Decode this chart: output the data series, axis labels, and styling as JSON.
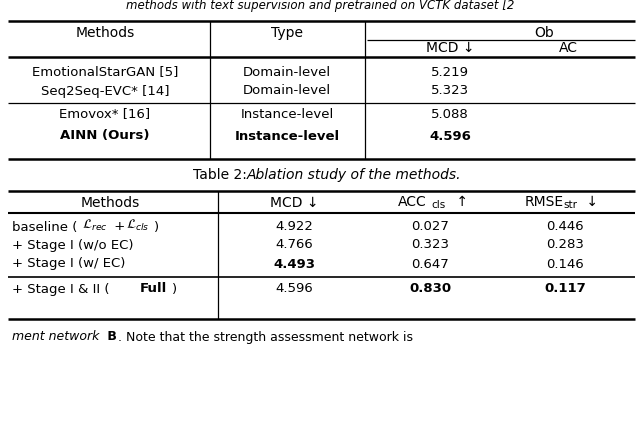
{
  "bg_color": "#ffffff",
  "title": "methods with text supervision and pretrained on VCTK dataset [2",
  "t1_methods": [
    "EmotionalStarGAN [5]",
    "Seq2Seq-EVC* [14]",
    "Emovox* [16]",
    "AINN (Ours)"
  ],
  "t1_types": [
    "Domain-level",
    "Domain-level",
    "Instance-level",
    "Instance-level"
  ],
  "t1_mcd": [
    "5.219",
    "5.323",
    "5.088",
    "4.596"
  ],
  "t1_bold_row": 3,
  "t2_caption_prefix": "Table 2: ",
  "t2_caption_italic": "Ablation study of the methods.",
  "t2_methods_plain": [
    "+ Stage I (w/o EC)",
    "+ Stage I (w/ EC)"
  ],
  "t2_mcd": [
    "4.922",
    "4.766",
    "4.493",
    "4.596"
  ],
  "t2_acc": [
    "0.027",
    "0.323",
    "0.647",
    "0.830"
  ],
  "t2_rmse": [
    "0.446",
    "0.283",
    "0.146",
    "0.117"
  ],
  "t2_bold_mcd": [
    false,
    false,
    true,
    false
  ],
  "t2_bold_acc": [
    false,
    false,
    false,
    true
  ],
  "t2_bold_rmse": [
    false,
    false,
    false,
    true
  ],
  "footer": "ment network",
  "footer2": ". Note that the strength assessment network is"
}
